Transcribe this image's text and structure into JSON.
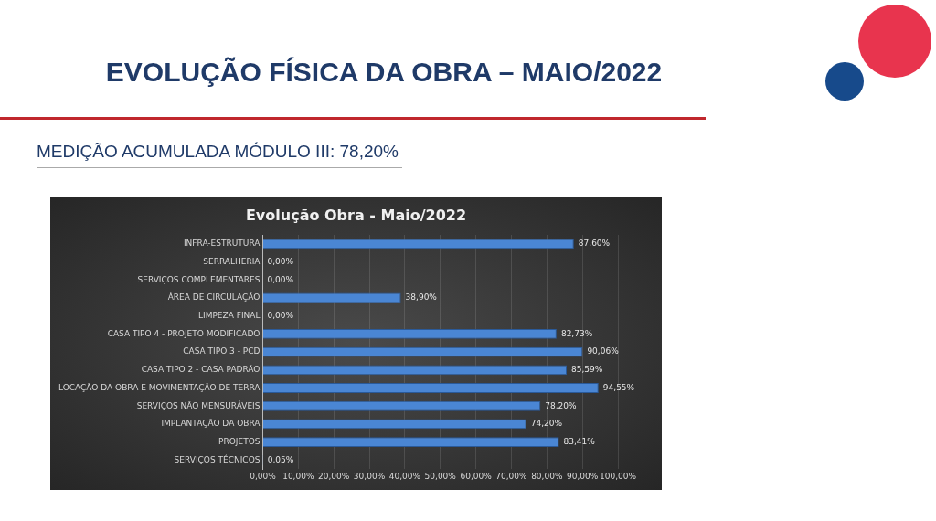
{
  "chart_data": {
    "type": "bar",
    "orientation": "horizontal",
    "title": "EVOLUÇÃO FÍSICA DA OBRA – MAIO/2022",
    "subtitle": "MEDIÇÃO ACUMULADA MÓDULO III: 78,20%",
    "annotations": [
      "Evolução Obra - Maio/2022"
    ],
    "categories": [
      "INFRA-ESTRUTURA",
      "SERRALHERIA",
      "SERVIÇOS COMPLEMENTARES",
      "ÁREA DE CIRCULAÇÃO",
      "LIMPEZA FINAL",
      "CASA TIPO 4 - PROJETO MODIFICADO",
      "CASA TIPO 3 - PCD",
      "CASA TIPO 2 - CASA PADRÃO",
      "LOCAÇÃO DA OBRA E MOVIMENTAÇÃO DE TERRA",
      "SERVIÇOS NÃO MENSURÁVEIS",
      "IMPLANTAÇÃO DA OBRA",
      "PROJETOS",
      "SERVIÇOS TÉCNICOS"
    ],
    "values": [
      87.6,
      0,
      0,
      38.9,
      0,
      82.73,
      90.06,
      85.59,
      94.55,
      78.2,
      74.2,
      83.41,
      0.05
    ],
    "value_labels": [
      "87,60%",
      "0,00%",
      "0,00%",
      "38,90%",
      "0,00%",
      "82,73%",
      "90,06%",
      "85,59%",
      "94,55%",
      "78,20%",
      "74,20%",
      "83,41%",
      "0,05%"
    ],
    "color": "#4a86d4",
    "xlim": [
      0,
      100
    ],
    "xticks": [
      {
        "value": 0,
        "label": "0,00%"
      },
      {
        "value": 10,
        "label": "10,00%"
      },
      {
        "value": 20,
        "label": "20,00%"
      },
      {
        "value": 30,
        "label": "30,00%"
      },
      {
        "value": 40,
        "label": "40,00%"
      },
      {
        "value": 50,
        "label": "50,00%"
      },
      {
        "value": 60,
        "label": "60,00%"
      },
      {
        "value": 70,
        "label": "70,00%"
      },
      {
        "value": 80,
        "label": "80,00%"
      },
      {
        "value": 90,
        "label": "90,00%"
      },
      {
        "value": 100,
        "label": "100,00%"
      }
    ],
    "grid": "x"
  }
}
